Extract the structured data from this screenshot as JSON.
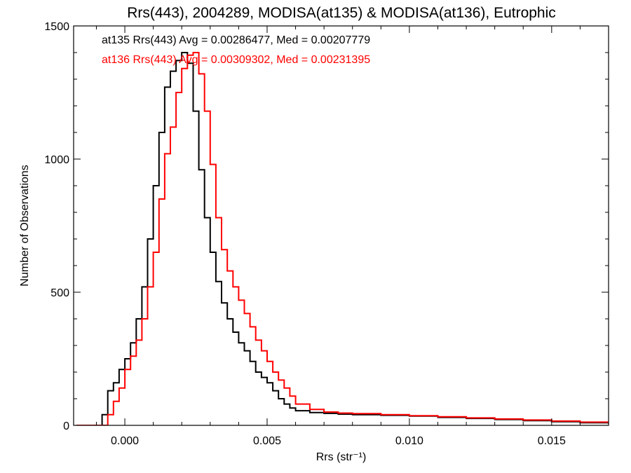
{
  "chart_data": {
    "type": "line",
    "title": "Rrs(443), 2004289, MODISA(at135) & MODISA(at136), Eutrophic",
    "xlabel": "Rrs (str⁻¹)",
    "ylabel": "Number of Observations",
    "xlim": [
      -0.0018,
      0.017
    ],
    "ylim": [
      0,
      1500
    ],
    "x_ticks": [
      0.0,
      0.005,
      0.01,
      0.015
    ],
    "x_tick_labels": [
      "0.000",
      "0.005",
      "0.010",
      "0.015"
    ],
    "y_ticks": [
      0,
      500,
      1000,
      1500
    ],
    "y_tick_labels": [
      "0",
      "500",
      "1000",
      "1500"
    ],
    "grid": false,
    "legend": "top-left",
    "series": [
      {
        "name": "at135",
        "label": "at135 Rrs(443) Avg = 0.00286477, Med = 0.00207779",
        "color": "#000000",
        "x": [
          -0.0017,
          -0.001,
          -0.0008,
          -0.0006,
          -0.0004,
          -0.0002,
          0.0,
          0.0002,
          0.0004,
          0.0006,
          0.0008,
          0.001,
          0.0012,
          0.0014,
          0.0016,
          0.0018,
          0.002,
          0.0022,
          0.0024,
          0.0026,
          0.0028,
          0.003,
          0.0032,
          0.0034,
          0.0036,
          0.0038,
          0.004,
          0.0042,
          0.0044,
          0.0046,
          0.0048,
          0.005,
          0.0052,
          0.0054,
          0.0056,
          0.0058,
          0.006,
          0.0065,
          0.007,
          0.0075,
          0.008,
          0.009,
          0.01,
          0.011,
          0.012,
          0.013,
          0.014,
          0.015,
          0.016,
          0.017
        ],
        "y": [
          0,
          0,
          40,
          130,
          160,
          210,
          250,
          310,
          400,
          520,
          700,
          900,
          1100,
          1270,
          1330,
          1370,
          1400,
          1360,
          1180,
          960,
          780,
          650,
          540,
          460,
          400,
          350,
          310,
          280,
          240,
          200,
          180,
          160,
          130,
          100,
          80,
          65,
          55,
          48,
          45,
          42,
          40,
          38,
          35,
          30,
          26,
          22,
          18,
          14,
          10,
          6
        ]
      },
      {
        "name": "at136",
        "label": "at136 Rrs(443) Avg = 0.00309302, Med = 0.00231395",
        "color": "#ff0000",
        "x": [
          -0.0017,
          -0.0008,
          -0.0006,
          -0.0004,
          -0.0002,
          0.0,
          0.0002,
          0.0004,
          0.0006,
          0.0008,
          0.001,
          0.0012,
          0.0014,
          0.0016,
          0.0018,
          0.002,
          0.0022,
          0.0024,
          0.0026,
          0.0028,
          0.003,
          0.0032,
          0.0034,
          0.0036,
          0.0038,
          0.004,
          0.0042,
          0.0044,
          0.0046,
          0.0048,
          0.005,
          0.0052,
          0.0054,
          0.0056,
          0.0058,
          0.006,
          0.0065,
          0.007,
          0.0075,
          0.008,
          0.009,
          0.01,
          0.011,
          0.012,
          0.013,
          0.014,
          0.015,
          0.016,
          0.017
        ],
        "y": [
          0,
          0,
          40,
          90,
          140,
          210,
          260,
          320,
          400,
          520,
          650,
          850,
          1020,
          1120,
          1250,
          1340,
          1390,
          1400,
          1320,
          1180,
          980,
          780,
          660,
          580,
          520,
          470,
          420,
          370,
          320,
          280,
          240,
          200,
          170,
          140,
          110,
          80,
          60,
          50,
          46,
          44,
          40,
          36,
          32,
          28,
          24,
          20,
          16,
          12,
          8
        ]
      }
    ]
  }
}
